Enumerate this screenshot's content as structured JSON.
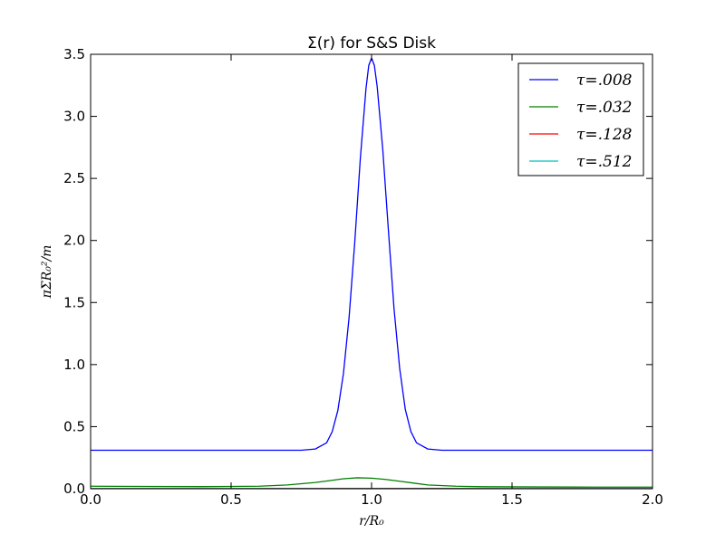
{
  "chart_data": {
    "type": "line",
    "title": "Σ(r) for S&S Disk",
    "xlabel": "r/R₀",
    "ylabel": "πΣR₀²/m",
    "xlim": [
      0.0,
      2.0
    ],
    "ylim": [
      0.0,
      3.5
    ],
    "xticks": [
      "0.0",
      "0.5",
      "1.0",
      "1.5",
      "2.0"
    ],
    "yticks": [
      "0.0",
      "0.5",
      "1.0",
      "1.5",
      "2.0",
      "2.5",
      "3.0",
      "3.5"
    ],
    "legend_position": "top-right",
    "grid": false,
    "series": [
      {
        "name": "τ=.008",
        "color": "#0000ff",
        "x": [
          0.0,
          0.2,
          0.4,
          0.6,
          0.7,
          0.75,
          0.8,
          0.84,
          0.86,
          0.88,
          0.9,
          0.92,
          0.94,
          0.96,
          0.98,
          0.99,
          1.0,
          1.01,
          1.02,
          1.04,
          1.06,
          1.08,
          1.1,
          1.12,
          1.14,
          1.16,
          1.2,
          1.25,
          1.3,
          1.4,
          1.6,
          1.8,
          2.0
        ],
        "y": [
          0.31,
          0.31,
          0.31,
          0.31,
          0.31,
          0.31,
          0.32,
          0.37,
          0.46,
          0.63,
          0.93,
          1.38,
          1.98,
          2.66,
          3.22,
          3.41,
          3.47,
          3.41,
          3.24,
          2.73,
          2.08,
          1.45,
          0.97,
          0.64,
          0.46,
          0.37,
          0.32,
          0.31,
          0.31,
          0.31,
          0.31,
          0.31,
          0.31
        ]
      },
      {
        "name": "τ=.032",
        "color": "#008000",
        "x": [
          0.0,
          0.2,
          0.4,
          0.6,
          0.7,
          0.8,
          0.85,
          0.9,
          0.95,
          1.0,
          1.05,
          1.1,
          1.15,
          1.2,
          1.3,
          1.4,
          1.6,
          1.8,
          2.0
        ],
        "y": [
          0.02,
          0.018,
          0.017,
          0.02,
          0.03,
          0.05,
          0.065,
          0.08,
          0.088,
          0.085,
          0.075,
          0.06,
          0.045,
          0.03,
          0.02,
          0.016,
          0.014,
          0.013,
          0.013
        ]
      },
      {
        "name": "τ=.128",
        "color": "#ff0000",
        "x": [
          0.0,
          0.5,
          1.0,
          1.5,
          2.0
        ],
        "y": [
          0.002,
          0.002,
          0.003,
          0.002,
          0.002
        ]
      },
      {
        "name": "τ=.512",
        "color": "#00bfbf",
        "x": [
          0.0,
          0.5,
          1.0,
          1.5,
          2.0
        ],
        "y": [
          0.0005,
          0.0005,
          0.0006,
          0.0005,
          0.0005
        ]
      }
    ]
  }
}
